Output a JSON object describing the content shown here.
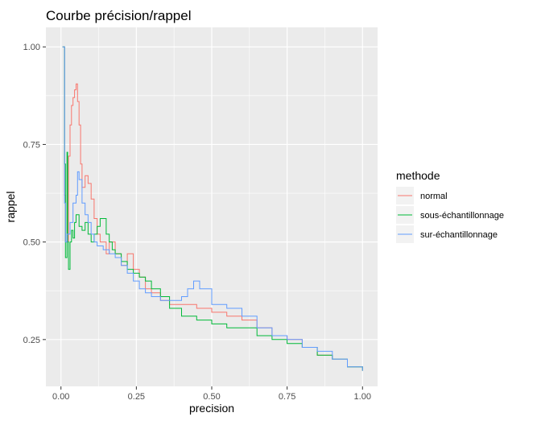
{
  "chart_data": {
    "type": "line",
    "title": "Courbe précision/rappel",
    "xlabel": "precision",
    "ylabel": "rappel",
    "xlim": [
      -0.05,
      1.05
    ],
    "ylim": [
      0.13,
      1.05
    ],
    "x_ticks": [
      {
        "value": 0.0,
        "label": "0.00"
      },
      {
        "value": 0.25,
        "label": "0.25"
      },
      {
        "value": 0.5,
        "label": "0.50"
      },
      {
        "value": 0.75,
        "label": "0.75"
      },
      {
        "value": 1.0,
        "label": "1.00"
      }
    ],
    "y_ticks": [
      {
        "value": 0.25,
        "label": "0.25"
      },
      {
        "value": 0.5,
        "label": "0.50"
      },
      {
        "value": 0.75,
        "label": "0.75"
      },
      {
        "value": 1.0,
        "label": "1.00"
      }
    ],
    "grid": true,
    "legend": {
      "title": "methode",
      "placement": "right"
    },
    "series": [
      {
        "name": "normal",
        "color": "#F8766D",
        "points": [
          [
            0.005,
            1.0
          ],
          [
            0.01,
            1.0
          ],
          [
            0.012,
            0.62
          ],
          [
            0.015,
            0.5
          ],
          [
            0.02,
            0.5
          ],
          [
            0.025,
            0.72
          ],
          [
            0.03,
            0.8
          ],
          [
            0.035,
            0.85
          ],
          [
            0.04,
            0.87
          ],
          [
            0.045,
            0.89
          ],
          [
            0.05,
            0.905
          ],
          [
            0.055,
            0.86
          ],
          [
            0.06,
            0.8
          ],
          [
            0.065,
            0.7
          ],
          [
            0.07,
            0.64
          ],
          [
            0.08,
            0.67
          ],
          [
            0.09,
            0.65
          ],
          [
            0.1,
            0.61
          ],
          [
            0.11,
            0.56
          ],
          [
            0.12,
            0.52
          ],
          [
            0.13,
            0.5
          ],
          [
            0.15,
            0.47
          ],
          [
            0.16,
            0.5
          ],
          [
            0.18,
            0.47
          ],
          [
            0.2,
            0.44
          ],
          [
            0.22,
            0.47
          ],
          [
            0.24,
            0.43
          ],
          [
            0.26,
            0.41
          ],
          [
            0.28,
            0.38
          ],
          [
            0.3,
            0.37
          ],
          [
            0.33,
            0.35
          ],
          [
            0.36,
            0.34
          ],
          [
            0.4,
            0.34
          ],
          [
            0.45,
            0.33
          ],
          [
            0.5,
            0.32
          ],
          [
            0.55,
            0.31
          ],
          [
            0.6,
            0.3
          ],
          [
            0.65,
            0.28
          ],
          [
            0.7,
            0.26
          ],
          [
            0.75,
            0.25
          ],
          [
            0.8,
            0.23
          ],
          [
            0.85,
            0.21
          ],
          [
            0.9,
            0.2
          ],
          [
            0.95,
            0.18
          ],
          [
            1.0,
            0.17
          ]
        ]
      },
      {
        "name": "sous-échantillonnage",
        "color": "#00BA38",
        "points": [
          [
            0.005,
            1.0
          ],
          [
            0.01,
            1.0
          ],
          [
            0.012,
            0.7
          ],
          [
            0.015,
            0.46
          ],
          [
            0.02,
            0.73
          ],
          [
            0.022,
            0.5
          ],
          [
            0.025,
            0.43
          ],
          [
            0.03,
            0.5
          ],
          [
            0.035,
            0.53
          ],
          [
            0.04,
            0.51
          ],
          [
            0.045,
            0.55
          ],
          [
            0.05,
            0.57
          ],
          [
            0.06,
            0.54
          ],
          [
            0.07,
            0.53
          ],
          [
            0.08,
            0.55
          ],
          [
            0.09,
            0.52
          ],
          [
            0.1,
            0.5
          ],
          [
            0.11,
            0.52
          ],
          [
            0.12,
            0.54
          ],
          [
            0.13,
            0.56
          ],
          [
            0.14,
            0.56
          ],
          [
            0.15,
            0.52
          ],
          [
            0.16,
            0.5
          ],
          [
            0.17,
            0.48
          ],
          [
            0.18,
            0.47
          ],
          [
            0.2,
            0.45
          ],
          [
            0.22,
            0.43
          ],
          [
            0.24,
            0.42
          ],
          [
            0.26,
            0.41
          ],
          [
            0.28,
            0.4
          ],
          [
            0.3,
            0.38
          ],
          [
            0.33,
            0.36
          ],
          [
            0.36,
            0.33
          ],
          [
            0.4,
            0.31
          ],
          [
            0.45,
            0.3
          ],
          [
            0.5,
            0.29
          ],
          [
            0.55,
            0.28
          ],
          [
            0.6,
            0.28
          ],
          [
            0.65,
            0.26
          ],
          [
            0.7,
            0.25
          ],
          [
            0.75,
            0.24
          ],
          [
            0.8,
            0.23
          ],
          [
            0.85,
            0.21
          ],
          [
            0.9,
            0.2
          ],
          [
            0.95,
            0.18
          ],
          [
            1.0,
            0.17
          ]
        ]
      },
      {
        "name": "sur-échantillonnage",
        "color": "#619CFF",
        "points": [
          [
            0.005,
            1.0
          ],
          [
            0.01,
            1.0
          ],
          [
            0.012,
            0.6
          ],
          [
            0.015,
            0.5
          ],
          [
            0.02,
            0.52
          ],
          [
            0.03,
            0.55
          ],
          [
            0.04,
            0.6
          ],
          [
            0.05,
            0.62
          ],
          [
            0.055,
            0.68
          ],
          [
            0.06,
            0.66
          ],
          [
            0.07,
            0.6
          ],
          [
            0.08,
            0.57
          ],
          [
            0.09,
            0.55
          ],
          [
            0.1,
            0.52
          ],
          [
            0.11,
            0.5
          ],
          [
            0.12,
            0.49
          ],
          [
            0.14,
            0.48
          ],
          [
            0.16,
            0.47
          ],
          [
            0.18,
            0.46
          ],
          [
            0.2,
            0.44
          ],
          [
            0.22,
            0.42
          ],
          [
            0.24,
            0.4
          ],
          [
            0.26,
            0.38
          ],
          [
            0.28,
            0.37
          ],
          [
            0.3,
            0.36
          ],
          [
            0.33,
            0.35
          ],
          [
            0.36,
            0.35
          ],
          [
            0.4,
            0.36
          ],
          [
            0.42,
            0.38
          ],
          [
            0.44,
            0.4
          ],
          [
            0.46,
            0.38
          ],
          [
            0.5,
            0.34
          ],
          [
            0.55,
            0.33
          ],
          [
            0.6,
            0.31
          ],
          [
            0.65,
            0.28
          ],
          [
            0.7,
            0.26
          ],
          [
            0.75,
            0.25
          ],
          [
            0.8,
            0.23
          ],
          [
            0.85,
            0.22
          ],
          [
            0.9,
            0.2
          ],
          [
            0.95,
            0.18
          ],
          [
            1.0,
            0.17
          ]
        ]
      }
    ]
  }
}
